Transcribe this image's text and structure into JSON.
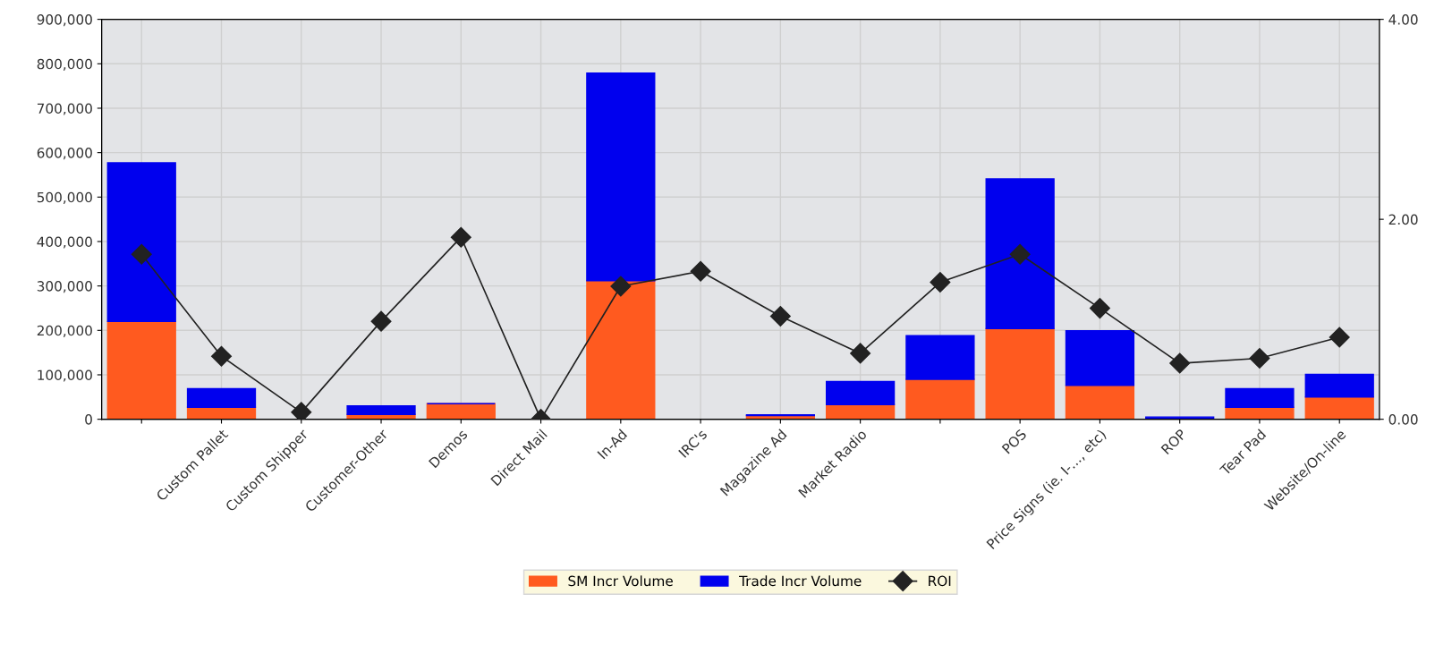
{
  "chart_data": {
    "type": "bar",
    "stacked": true,
    "categories": [
      null,
      "Custom Pallet",
      "Custom Shipper",
      "Customer-Other",
      "Demos",
      "Direct Mail",
      "In-Ad",
      "IRC's",
      "Magazine Ad",
      "Market Radio",
      null,
      "POS",
      "Price Signs (ie. I-..., etc)",
      "ROP",
      "Tear Pad",
      "Website/On-line"
    ],
    "series": [
      {
        "name": "SM Incr Volume",
        "color": "#ff5a1f",
        "values": [
          220000,
          27000,
          0,
          11000,
          35000,
          0,
          312000,
          0,
          8000,
          33000,
          90000,
          204000,
          76000,
          0,
          27000,
          50000
        ]
      },
      {
        "name": "Trade Incr Volume",
        "color": "#0000ee",
        "values": [
          357000,
          42000,
          0,
          19000,
          0,
          0,
          467000,
          0,
          2000,
          52000,
          98000,
          337000,
          123000,
          5000,
          42000,
          51000
        ]
      },
      {
        "name": "ROI",
        "type": "line",
        "axis": "y2",
        "color": "#222222",
        "marker": "diamond",
        "values": [
          1.65,
          0.63,
          0.07,
          0.98,
          1.82,
          0,
          1.33,
          1.48,
          1.03,
          0.66,
          1.37,
          1.65,
          1.11,
          0.56,
          0.61,
          0.82
        ]
      }
    ],
    "ylim": [
      0,
      900000
    ],
    "yticks": [
      {
        "value": 0,
        "label": "0"
      },
      {
        "value": 100000,
        "label": "100,000"
      },
      {
        "value": 200000,
        "label": "200,000"
      },
      {
        "value": 300000,
        "label": "300,000"
      },
      {
        "value": 400000,
        "label": "400,000"
      },
      {
        "value": 500000,
        "label": "500,000"
      },
      {
        "value": 600000,
        "label": "600,000"
      },
      {
        "value": 700000,
        "label": "700,000"
      },
      {
        "value": 800000,
        "label": "800,000"
      },
      {
        "value": 900000,
        "label": "900,000"
      }
    ],
    "y2lim": [
      0,
      4
    ],
    "y2ticks": [
      {
        "value": 0,
        "label": "0.00"
      },
      {
        "value": 2,
        "label": "2.00"
      },
      {
        "value": 4,
        "label": "4.00"
      }
    ],
    "grid": true,
    "legend": "bottom"
  }
}
